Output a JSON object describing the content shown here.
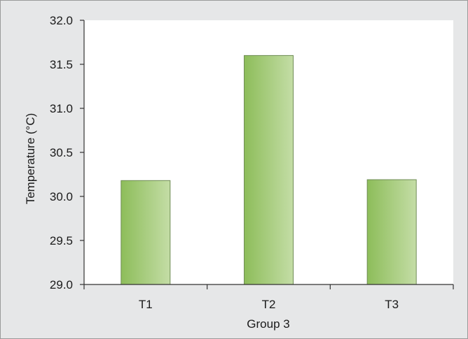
{
  "chart_data": {
    "type": "bar",
    "categories": [
      "T1",
      "T2",
      "T3"
    ],
    "values": [
      30.18,
      31.6,
      30.19
    ],
    "xlabel": "Group 3",
    "ylabel": "Temperature (°C)",
    "ylim": [
      29.0,
      32.0
    ],
    "yticks": [
      "29.0",
      "29.5",
      "30.0",
      "30.5",
      "31.0",
      "31.5",
      "32.0"
    ],
    "grid": false,
    "legend": "none",
    "colors": {
      "bar_dark": "#8dbd5a",
      "bar_light": "#c4dda6",
      "bar_stroke": "#6f8c55",
      "plot_background": "#ffffff",
      "frame_background": "#e6e7e8",
      "axis": "#333333"
    }
  }
}
